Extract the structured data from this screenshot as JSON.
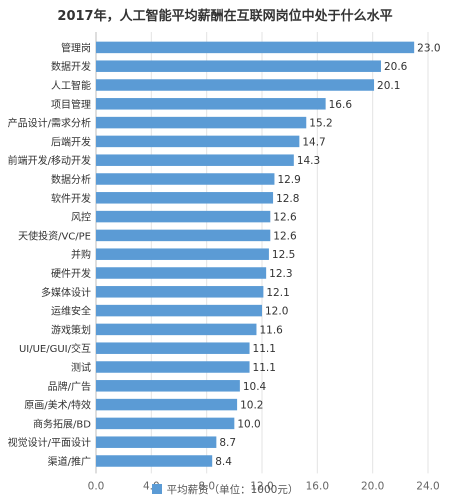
{
  "chart_data": {
    "type": "bar",
    "orientation": "horizontal",
    "title": "2017年，人工智能平均薪酬在互联网岗位中处于什么水平",
    "categories": [
      "管理岗",
      "数据开发",
      "人工智能",
      "项目管理",
      "产品设计/需求分析",
      "后端开发",
      "前端开发/移动开发",
      "数据分析",
      "软件开发",
      "风控",
      "天使投资/VC/PE",
      "并购",
      "硬件开发",
      "多媒体设计",
      "运维安全",
      "游戏策划",
      "UI/UE/GUI/交互",
      "测试",
      "品牌/广告",
      "原画/美术/特效",
      "商务拓展/BD",
      "视觉设计/平面设计",
      "渠道/推广"
    ],
    "series": [
      {
        "name": "平均薪资（单位：1000元）",
        "values": [
          23.0,
          20.6,
          20.1,
          16.6,
          15.2,
          14.7,
          14.3,
          12.9,
          12.8,
          12.6,
          12.6,
          12.5,
          12.3,
          12.1,
          12.0,
          11.6,
          11.1,
          11.1,
          10.4,
          10.2,
          10.0,
          8.7,
          8.4
        ]
      }
    ],
    "xlim": [
      0,
      24
    ],
    "x_ticks": [
      0,
      4,
      8,
      12,
      16,
      20,
      24
    ],
    "tick_labels": [
      "0.0",
      "4.0",
      "8.0",
      "12.0",
      "16.0",
      "20.0",
      "24.0"
    ],
    "value_labels": [
      "23.0",
      "20.6",
      "20.1",
      "16.6",
      "15.2",
      "14.7",
      "14.3",
      "12.9",
      "12.8",
      "12.6",
      "12.6",
      "12.5",
      "12.3",
      "12.1",
      "12.0",
      "11.6",
      "11.1",
      "11.1",
      "10.4",
      "10.2",
      "10.0",
      "8.7",
      "8.4"
    ],
    "grid": "vertical",
    "legend": "bottom",
    "bar_color": "#5b9bd5"
  }
}
